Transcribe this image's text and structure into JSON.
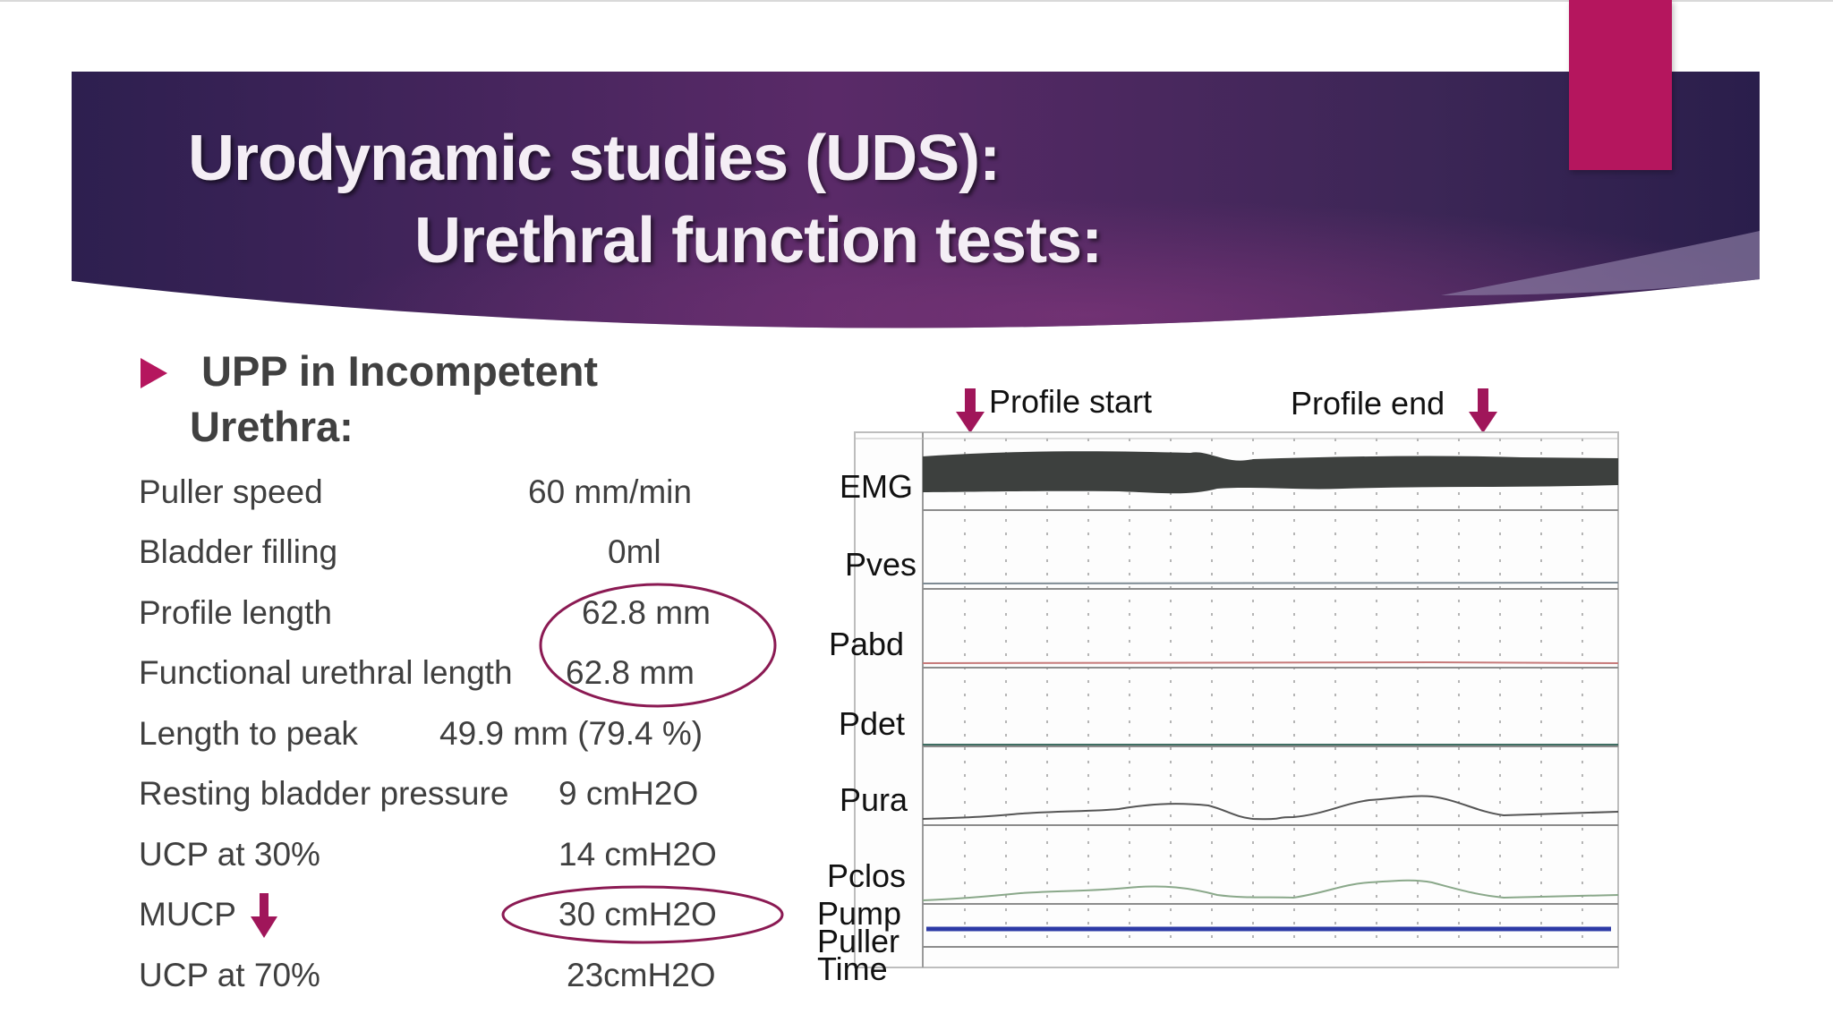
{
  "slide": {
    "title_line1": "Urodynamic studies (UDS):",
    "title_line2": "Urethral function tests:",
    "bullet_line1": "UPP in Incompetent",
    "bullet_line2": "Urethra:"
  },
  "parameters": [
    {
      "label": "Puller speed",
      "value": "60 mm/min"
    },
    {
      "label": "Bladder filling",
      "value": "0ml"
    },
    {
      "label": "Profile length",
      "value": "62.8 mm"
    },
    {
      "label": "Functional urethral length",
      "value": "62.8 mm"
    },
    {
      "label": "Length to peak",
      "value": "49.9 mm (79.4 %)"
    },
    {
      "label": "Resting bladder pressure",
      "value": "9 cmH2O"
    },
    {
      "label": "UCP at 30%",
      "value": "14 cmH2O"
    },
    {
      "label": "MUCP",
      "value": "30 cmH2O"
    },
    {
      "label": "UCP at 70%",
      "value": "23cmH2O"
    }
  ],
  "trace": {
    "profile_start": "Profile start",
    "profile_end": "Profile end",
    "channels": [
      "EMG",
      "Pves",
      "Pabd",
      "Pdet",
      "Pura",
      "Pclos",
      "Pump",
      "Puller",
      "Time"
    ]
  },
  "colors": {
    "accent": "#b5165e",
    "banner_dark": "#2b1d4d",
    "banner_mid": "#5a2a68",
    "emg_fill": "#3d403e",
    "pump_line": "#2d3aa6"
  },
  "icons": {
    "bullet": "triangle-bullet-icon",
    "arrow": "down-arrow-icon"
  }
}
